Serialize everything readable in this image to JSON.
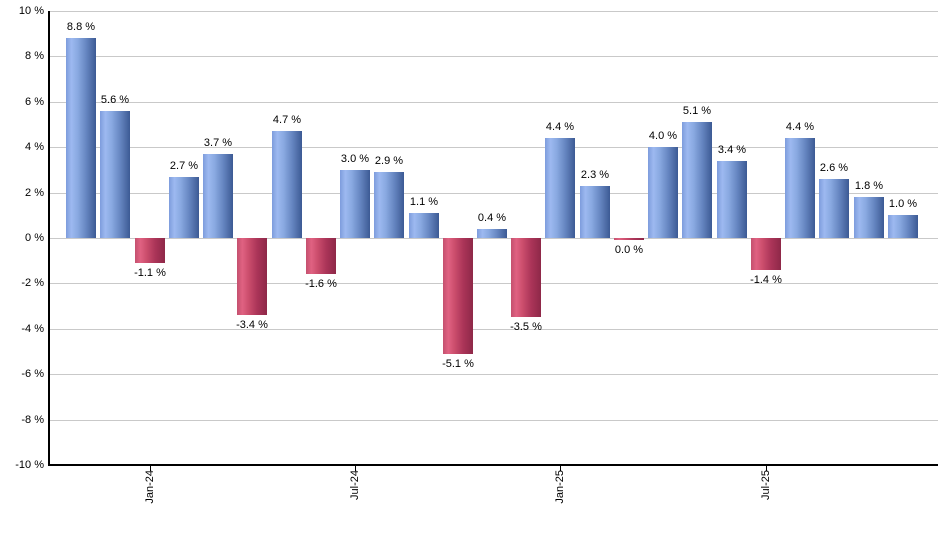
{
  "chart_data": {
    "type": "bar",
    "title": "",
    "xlabel": "",
    "ylabel": "",
    "ylim": [
      -10,
      10
    ],
    "grid": true,
    "legend": false,
    "y_tick_labels": [
      "10 %",
      "8 %",
      "6 %",
      "4 %",
      "2 %",
      "0 %",
      "-2 %",
      "-4 %",
      "-6 %",
      "-8 %",
      "-10 %"
    ],
    "y_tick_values": [
      10,
      8,
      6,
      4,
      2,
      0,
      -2,
      -4,
      -6,
      -8,
      -10
    ],
    "x_tick_labels": [
      {
        "slot": 2,
        "label": "Jan-24"
      },
      {
        "slot": 8,
        "label": "Jul-24"
      },
      {
        "slot": 14,
        "label": "Jan-25"
      },
      {
        "slot": 20,
        "label": "Jul-25"
      }
    ],
    "bars": [
      {
        "value": 8.8,
        "label": "8.8 %",
        "sign": "pos"
      },
      {
        "value": 5.6,
        "label": "5.6 %",
        "sign": "pos"
      },
      {
        "value": -1.1,
        "label": "-1.1 %",
        "sign": "neg"
      },
      {
        "value": 2.7,
        "label": "2.7 %",
        "sign": "pos"
      },
      {
        "value": 3.7,
        "label": "3.7 %",
        "sign": "pos"
      },
      {
        "value": -3.4,
        "label": "-3.4 %",
        "sign": "neg"
      },
      {
        "value": 4.7,
        "label": "4.7 %",
        "sign": "pos"
      },
      {
        "value": -1.6,
        "label": "-1.6 %",
        "sign": "neg"
      },
      {
        "value": 3.0,
        "label": "3.0 %",
        "sign": "pos"
      },
      {
        "value": 2.9,
        "label": "2.9 %",
        "sign": "pos"
      },
      {
        "value": 1.1,
        "label": "1.1 %",
        "sign": "pos"
      },
      {
        "value": -5.1,
        "label": "-5.1 %",
        "sign": "neg"
      },
      {
        "value": 0.4,
        "label": "0.4 %",
        "sign": "pos"
      },
      {
        "value": -3.5,
        "label": "-3.5 %",
        "sign": "neg"
      },
      {
        "value": 4.4,
        "label": "4.4 %",
        "sign": "pos"
      },
      {
        "value": 2.3,
        "label": "2.3 %",
        "sign": "pos"
      },
      {
        "value": 0.0,
        "label": "0.0 %",
        "sign": "neg"
      },
      {
        "value": 4.0,
        "label": "4.0 %",
        "sign": "pos"
      },
      {
        "value": 5.1,
        "label": "5.1 %",
        "sign": "pos"
      },
      {
        "value": 3.4,
        "label": "3.4 %",
        "sign": "pos"
      },
      {
        "value": -1.4,
        "label": "-1.4 %",
        "sign": "neg"
      },
      {
        "value": 4.4,
        "label": "4.4 %",
        "sign": "pos"
      },
      {
        "value": 2.6,
        "label": "2.6 %",
        "sign": "pos"
      },
      {
        "value": 1.8,
        "label": "1.8 %",
        "sign": "pos"
      },
      {
        "value": 1.0,
        "label": "1.0 %",
        "sign": "pos"
      }
    ],
    "colors": {
      "positive_bar": "#7d9cdc",
      "negative_bar": "#c4506e",
      "gridline": "#c9c9c9",
      "axis": "#000000",
      "text": "#000000",
      "background": "#ffffff"
    }
  }
}
